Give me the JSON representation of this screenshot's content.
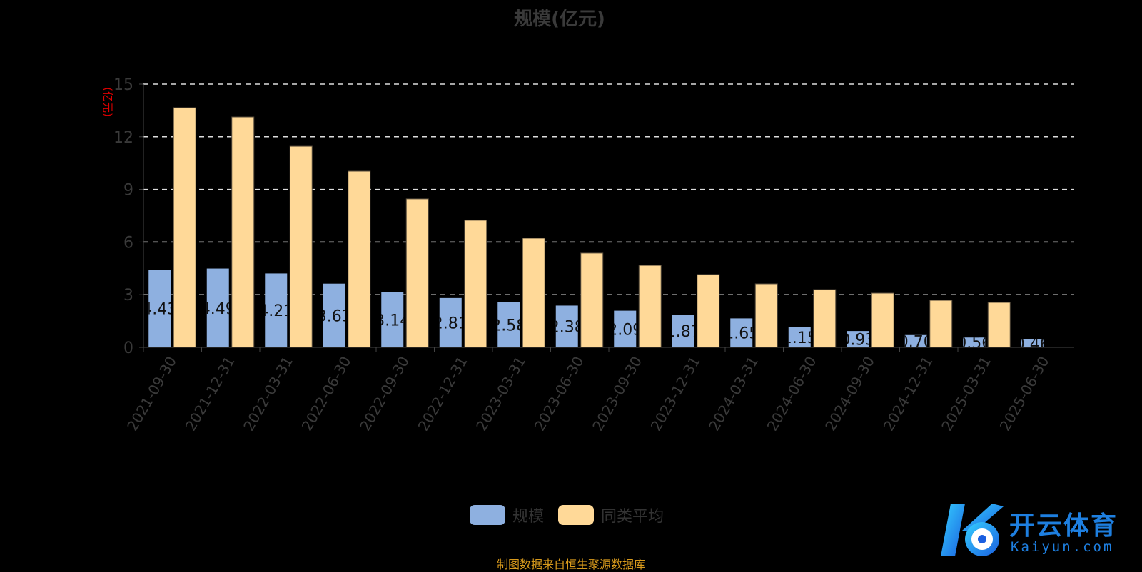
{
  "chart_data": {
    "type": "bar",
    "title": "规模(亿元)",
    "ylabel": "(亿元)",
    "xlabel": "",
    "ylim": [
      0,
      15
    ],
    "yticks": [
      0,
      3,
      6,
      9,
      12,
      15
    ],
    "grid": true,
    "legend_position": "bottom",
    "categories": [
      "2021-09-30",
      "2021-12-31",
      "2022-03-31",
      "2022-06-30",
      "2022-09-30",
      "2022-12-31",
      "2023-03-31",
      "2023-06-30",
      "2023-09-30",
      "2023-12-31",
      "2024-03-31",
      "2024-06-30",
      "2024-09-30",
      "2024-12-31",
      "2025-03-31",
      "2025-06-30"
    ],
    "series": [
      {
        "name": "规模",
        "color": "#8eb0e0",
        "values": [
          4.43,
          4.49,
          4.21,
          3.63,
          3.14,
          2.81,
          2.58,
          2.38,
          2.09,
          1.87,
          1.65,
          1.15,
          0.93,
          0.7,
          0.56,
          0.46
        ],
        "labels": [
          "4.43",
          "4.49",
          "4.21",
          "3.63",
          "3.14",
          "2.81",
          "2.58",
          "2.38",
          "2.09",
          "1.87",
          "1.65",
          "1.15",
          "0.93",
          "0.70",
          "0.56",
          "0.46"
        ]
      },
      {
        "name": "同类平均",
        "color": "#ffd998",
        "values": [
          13.66,
          13.13,
          11.46,
          10.04,
          8.46,
          7.24,
          6.22,
          5.37,
          4.67,
          4.15,
          3.62,
          3.29,
          3.09,
          2.68,
          2.56,
          null
        ]
      }
    ]
  },
  "source": "制图数据来自恒生聚源数据库",
  "logo": {
    "cn": "开云体育",
    "en": "Kaiyun.com"
  }
}
